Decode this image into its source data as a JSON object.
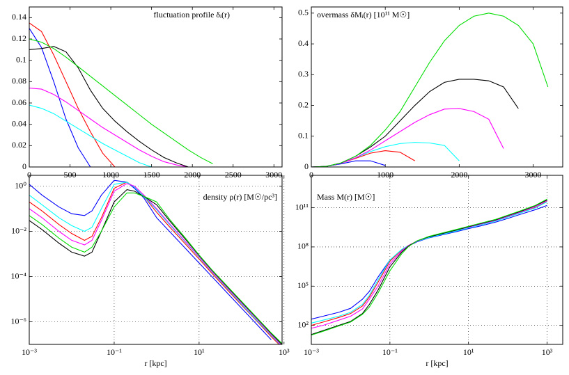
{
  "chart_data": [
    {
      "type": "line",
      "title": "fluctuation profile δᵢ(r)",
      "x": [
        0,
        150,
        300,
        450,
        600,
        750,
        900,
        1050,
        1200,
        1350,
        1500,
        1650,
        1800,
        1950,
        2100,
        2250,
        2400
      ],
      "xlim": [
        0,
        3100
      ],
      "xticks": [
        0,
        500,
        1000,
        1500,
        2000,
        2500,
        3000
      ],
      "ylim": [
        0,
        0.15
      ],
      "yticks": [
        0,
        0.02,
        0.04,
        0.06,
        0.08,
        0.1,
        0.12,
        0.14
      ],
      "grid": false,
      "series": [
        {
          "color": "#0000ff",
          "values": [
            0.13,
            0.112,
            0.08,
            0.045,
            0.018,
            0,
            null,
            null,
            null,
            null,
            null,
            null,
            null,
            null,
            null,
            null,
            null
          ]
        },
        {
          "color": "#ff0000",
          "values": [
            0.135,
            0.127,
            0.105,
            0.08,
            0.055,
            0.033,
            0.013,
            0,
            null,
            null,
            null,
            null,
            null,
            null,
            null,
            null,
            null
          ]
        },
        {
          "color": "#00ffff",
          "values": [
            0.058,
            0.055,
            0.05,
            0.043,
            0.036,
            0.029,
            0.022,
            0.016,
            0.01,
            0.004,
            0,
            null,
            null,
            null,
            null,
            null,
            null
          ]
        },
        {
          "color": "#ff00ff",
          "values": [
            0.074,
            0.073,
            0.068,
            0.061,
            0.053,
            0.045,
            0.037,
            0.03,
            0.023,
            0.016,
            0.01,
            0.005,
            0.002,
            0,
            null,
            null,
            null
          ]
        },
        {
          "color": "#000000",
          "values": [
            0.11,
            0.111,
            0.113,
            0.108,
            0.093,
            0.072,
            0.055,
            0.043,
            0.033,
            0.024,
            0.016,
            0.009,
            0.004,
            0,
            null,
            null,
            null
          ]
        },
        {
          "color": "#00dd00",
          "values": [
            0.12,
            0.117,
            0.111,
            0.103,
            0.094,
            0.085,
            0.076,
            0.067,
            0.058,
            0.049,
            0.04,
            0.032,
            0.024,
            0.016,
            0.009,
            0.003,
            null
          ]
        }
      ]
    },
    {
      "type": "line",
      "title": "overmass δMᵢ(r) [10¹¹ M☉]",
      "x": [
        0,
        200,
        400,
        600,
        800,
        1000,
        1200,
        1400,
        1600,
        1800,
        2000,
        2200,
        2400,
        2600,
        2800,
        3000,
        3200,
        3400
      ],
      "xlim": [
        0,
        3400
      ],
      "xticks": [
        0,
        1000,
        2000,
        3000
      ],
      "ylim": [
        0,
        0.52
      ],
      "yticks": [
        0,
        0.1,
        0.2,
        0.3,
        0.4,
        0.5
      ],
      "grid": false,
      "series": [
        {
          "color": "#0000ff",
          "values": [
            0,
            0.002,
            0.01,
            0.02,
            0.02,
            0.005,
            null,
            null,
            null,
            null,
            null,
            null,
            null,
            null,
            null,
            null,
            null,
            null
          ]
        },
        {
          "color": "#ff0000",
          "values": [
            0,
            0.002,
            0.012,
            0.028,
            0.045,
            0.053,
            0.048,
            0.02,
            null,
            null,
            null,
            null,
            null,
            null,
            null,
            null,
            null,
            null
          ]
        },
        {
          "color": "#00ffff",
          "values": [
            0,
            0.002,
            0.012,
            0.03,
            0.05,
            0.066,
            0.076,
            0.08,
            0.078,
            0.07,
            0.02,
            null,
            null,
            null,
            null,
            null,
            null,
            null
          ]
        },
        {
          "color": "#ff00ff",
          "values": [
            0,
            0.002,
            0.012,
            0.03,
            0.055,
            0.085,
            0.115,
            0.145,
            0.17,
            0.188,
            0.19,
            0.18,
            0.155,
            0.06,
            null,
            null,
            null,
            null
          ]
        },
        {
          "color": "#000000",
          "values": [
            0,
            0.002,
            0.013,
            0.035,
            0.065,
            0.1,
            0.15,
            0.2,
            0.245,
            0.275,
            0.285,
            0.285,
            0.28,
            0.26,
            0.19,
            null,
            null,
            null
          ]
        },
        {
          "color": "#00dd00",
          "values": [
            0,
            0.002,
            0.013,
            0.035,
            0.07,
            0.12,
            0.18,
            0.26,
            0.34,
            0.41,
            0.46,
            0.49,
            0.5,
            0.49,
            0.46,
            0.4,
            0.26,
            null
          ]
        }
      ]
    },
    {
      "type": "line",
      "title": "density ρ(r) [M☉/pc³]",
      "xlabel": "r [kpc]",
      "xscale": "log",
      "yscale": "log",
      "x": [
        0.001,
        0.002,
        0.005,
        0.01,
        0.02,
        0.03,
        0.05,
        0.1,
        0.2,
        0.3,
        0.5,
        1,
        2,
        5,
        10,
        20,
        50,
        100,
        200,
        500,
        1000
      ],
      "xlim": [
        0.001,
        900
      ],
      "xticks": [
        {
          "value": 0.001,
          "label": "10⁻³"
        },
        {
          "value": 0.1,
          "label": "10⁻¹"
        },
        {
          "value": 10,
          "label": "10¹"
        },
        {
          "value": 1000,
          "label": "10³"
        }
      ],
      "ylim": [
        1e-07,
        3
      ],
      "yticks": [
        {
          "value": 1,
          "label": "10⁰"
        },
        {
          "value": 0.01,
          "label": "10⁻²"
        },
        {
          "value": 0.0001,
          "label": "10⁻⁴"
        },
        {
          "value": 1e-06,
          "label": "10⁻⁶"
        }
      ],
      "grid": true,
      "series": [
        {
          "color": "#0000ff",
          "values": [
            1.2,
            0.4,
            0.12,
            0.06,
            0.05,
            0.08,
            0.4,
            1.8,
            1.5,
            0.8,
            0.3,
            0.04,
            0.01,
            0.0016,
            0.0004,
            0.0001,
            1.6e-05,
            4e-06,
            1e-06,
            1.6e-07,
            null
          ]
        },
        {
          "color": "#ff0000",
          "values": [
            0.2,
            0.08,
            0.02,
            0.008,
            0.004,
            0.006,
            0.04,
            0.8,
            1.5,
            0.9,
            0.35,
            0.07,
            0.016,
            0.0025,
            0.0006,
            0.00014,
            2.2e-05,
            5.5e-06,
            1.4e-06,
            2.2e-07,
            6e-08
          ]
        },
        {
          "color": "#00ffff",
          "values": [
            0.4,
            0.15,
            0.04,
            0.018,
            0.01,
            0.015,
            0.1,
            1.2,
            1.5,
            0.9,
            0.35,
            0.09,
            0.02,
            0.003,
            0.0007,
            0.00016,
            2.5e-05,
            6e-06,
            1.5e-06,
            2.5e-07,
            6.5e-08
          ]
        },
        {
          "color": "#ff00ff",
          "values": [
            0.1,
            0.04,
            0.01,
            0.004,
            0.0025,
            0.004,
            0.03,
            0.6,
            1.3,
            1.0,
            0.4,
            0.1,
            0.022,
            0.0032,
            0.00075,
            0.00017,
            2.7e-05,
            6.7e-06,
            1.7e-06,
            2.7e-07,
            7e-08
          ]
        },
        {
          "color": "#000000",
          "values": [
            0.03,
            0.012,
            0.003,
            0.0012,
            0.0008,
            0.0012,
            0.01,
            0.2,
            0.7,
            0.6,
            0.35,
            0.15,
            0.03,
            0.004,
            0.00085,
            0.00019,
            3e-05,
            7.5e-06,
            1.9e-06,
            3e-07,
            8e-08
          ]
        },
        {
          "color": "#00dd00",
          "values": [
            0.05,
            0.02,
            0.005,
            0.002,
            0.0012,
            0.002,
            0.01,
            0.12,
            0.5,
            0.5,
            0.35,
            0.2,
            0.035,
            0.0045,
            0.0009,
            0.0002,
            3.2e-05,
            8e-06,
            2e-06,
            3.2e-07,
            9e-08
          ]
        }
      ]
    },
    {
      "type": "line",
      "title": "Mass M(r) [M☉]",
      "xlabel": "r [kpc]",
      "xscale": "log",
      "yscale": "log",
      "x": [
        0.001,
        0.002,
        0.005,
        0.01,
        0.02,
        0.03,
        0.05,
        0.1,
        0.2,
        0.3,
        0.5,
        1,
        2,
        5,
        10,
        20,
        50,
        100,
        200,
        500,
        1000
      ],
      "xlim": [
        0.001,
        2500
      ],
      "xticks": [
        {
          "value": 0.001,
          "label": "10⁻³"
        },
        {
          "value": 0.1,
          "label": "10⁻¹"
        },
        {
          "value": 10,
          "label": "10¹"
        },
        {
          "value": 1000,
          "label": "10³"
        }
      ],
      "ylim": [
        3.5,
        30000000000000
      ],
      "yticks": [
        {
          "value": 100,
          "label": "10²"
        },
        {
          "value": 100000,
          "label": "10⁵"
        },
        {
          "value": 100000000,
          "label": "10⁸"
        },
        {
          "value": 100000000000,
          "label": "10¹¹"
        }
      ],
      "grid": true,
      "series": [
        {
          "color": "#0000ff",
          "values": [
            300,
            500,
            1000,
            2000,
            10000,
            40000,
            500000,
            10000000,
            60000000,
            120000000,
            250000000,
            500000000,
            800000000,
            1500000000,
            2500000000,
            4000000000,
            8000000000,
            15000000000,
            30000000000,
            70000000000,
            150000000000
          ]
        },
        {
          "color": "#ff0000",
          "values": [
            100,
            180,
            400,
            800,
            3000,
            15000,
            200000,
            8000000,
            60000000,
            130000000,
            280000000,
            550000000,
            900000000,
            1800000000,
            3000000000,
            5000000000,
            10000000000,
            20000000000,
            40000000000,
            100000000000,
            300000000000
          ]
        },
        {
          "color": "#00ffff",
          "values": [
            150,
            250,
            500,
            1000,
            4000,
            20000,
            300000,
            10000000,
            65000000,
            130000000,
            270000000,
            530000000,
            870000000,
            1700000000,
            2900000000,
            4800000000,
            9500000000,
            19000000000,
            38000000000,
            95000000000,
            280000000000
          ]
        },
        {
          "color": "#ff00ff",
          "values": [
            60,
            100,
            250,
            500,
            1800,
            10000,
            100000,
            5000000,
            50000000,
            130000000,
            280000000,
            600000000,
            1000000000,
            2000000000,
            3200000000,
            5500000000,
            11000000000,
            22000000000,
            45000000000,
            120000000000,
            350000000000
          ]
        },
        {
          "color": "#000000",
          "values": [
            20,
            40,
            100,
            200,
            800,
            4000,
            50000,
            3000000,
            40000000,
            120000000,
            300000000,
            600000000,
            1000000000,
            2000000000,
            3500000000,
            6000000000,
            12000000000,
            25000000000,
            50000000000,
            140000000000,
            400000000000
          ]
        },
        {
          "color": "#00dd00",
          "values": [
            18,
            35,
            90,
            180,
            700,
            2500,
            30000,
            1500000,
            30000000,
            110000000,
            300000000,
            650000000,
            1100000000,
            2200000000,
            3800000000,
            6500000000,
            13000000000,
            27000000000,
            55000000000,
            150000000000,
            450000000000
          ]
        }
      ]
    }
  ]
}
